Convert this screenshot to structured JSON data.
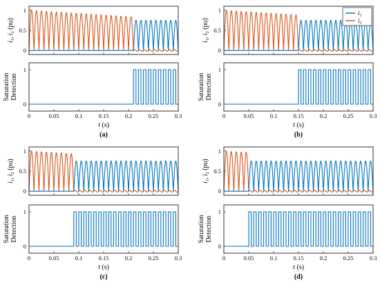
{
  "colors": {
    "i1": "#0072BD",
    "i2": "#D95319"
  },
  "chart_data": [
    {
      "panel": "(a)",
      "type": "line",
      "top": {
        "ylabel": "i1, i2 (pu)",
        "xlim": [
          0,
          0.3
        ],
        "ylim": [
          -0.1,
          1.1
        ],
        "yticks": [
          0,
          0.5,
          1
        ],
        "saturation_detect_time": 0.21,
        "series": [
          {
            "key": "i1",
            "description": "full-wave rectified 50 Hz current; after detection continues with peak ~0.7"
          },
          {
            "key": "i2",
            "description": "full-wave rectified current, peak ~1.0 decaying to ~0.75 before detection; ~0 after"
          }
        ]
      },
      "bottom": {
        "ylabel": "Saturation Detection",
        "xlim": [
          0,
          0.3
        ],
        "ylim": [
          -0.2,
          1.2
        ],
        "yticks": [
          0,
          1
        ],
        "xticks": [
          0,
          0.05,
          0.1,
          0.15,
          0.2,
          0.25,
          0.3
        ],
        "xlabel": "t (s)",
        "first_detect_time": 0.21,
        "pulse_period": 0.01
      }
    },
    {
      "panel": "(b)",
      "type": "line",
      "legend": [
        "i1",
        "i2"
      ],
      "top": {
        "ylabel": "i1, i2 (pu)",
        "xlim": [
          0,
          0.3
        ],
        "ylim": [
          -0.1,
          1.1
        ],
        "yticks": [
          0,
          0.5,
          1
        ],
        "saturation_detect_time": 0.15
      },
      "bottom": {
        "ylabel": "Saturation Detection",
        "xlim": [
          0,
          0.3
        ],
        "ylim": [
          -0.2,
          1.2
        ],
        "yticks": [
          0,
          1
        ],
        "xticks": [
          0,
          0.05,
          0.1,
          0.15,
          0.2,
          0.25,
          0.3
        ],
        "xlabel": "t (s)",
        "first_detect_time": 0.15,
        "pulse_period": 0.01
      }
    },
    {
      "panel": "(c)",
      "type": "line",
      "top": {
        "ylabel": "i1, i2 (pu)",
        "xlim": [
          0,
          0.3
        ],
        "ylim": [
          -0.1,
          1.1
        ],
        "yticks": [
          0,
          0.5,
          1
        ],
        "saturation_detect_time": 0.09
      },
      "bottom": {
        "ylabel": "Saturation Detection",
        "xlim": [
          0,
          0.3
        ],
        "ylim": [
          -0.2,
          1.2
        ],
        "yticks": [
          0,
          1
        ],
        "xticks": [
          0,
          0.05,
          0.1,
          0.15,
          0.2,
          0.25,
          0.3
        ],
        "xlabel": "t (s)",
        "first_detect_time": 0.09,
        "pulse_period": 0.01
      }
    },
    {
      "panel": "(d)",
      "type": "line",
      "top": {
        "ylabel": "i1, i2 (pu)",
        "xlim": [
          0,
          0.3
        ],
        "ylim": [
          -0.1,
          1.1
        ],
        "yticks": [
          0,
          0.5,
          1
        ],
        "saturation_detect_time": 0.05
      },
      "bottom": {
        "ylabel": "Saturation Detection",
        "xlim": [
          0,
          0.3
        ],
        "ylim": [
          -0.2,
          1.2
        ],
        "yticks": [
          0,
          1
        ],
        "xticks": [
          0,
          0.05,
          0.1,
          0.15,
          0.2,
          0.25,
          0.3
        ],
        "xlabel": "t (s)",
        "first_detect_time": 0.05,
        "pulse_period": 0.01
      }
    }
  ]
}
